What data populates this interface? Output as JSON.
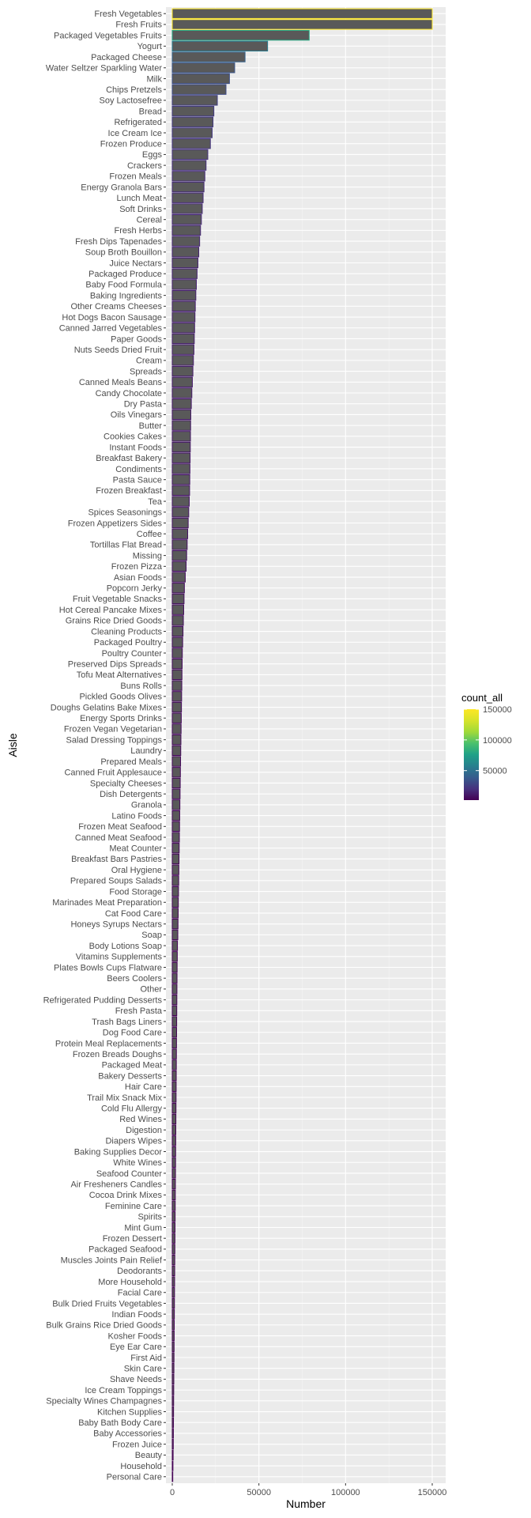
{
  "chart_data": {
    "type": "bar",
    "orientation": "horizontal",
    "xlabel": "Number",
    "ylabel": "Aisle",
    "xlim": [
      0,
      150000
    ],
    "x_ticks": [
      0,
      50000,
      100000,
      150000
    ],
    "x_tick_labels": [
      "0",
      "50000",
      "100000",
      "150000"
    ],
    "grid": true,
    "legend": {
      "title": "count_all",
      "placement": "right",
      "ticks": [
        50000,
        100000,
        150000
      ],
      "tick_labels": [
        "50000",
        "100000",
        "150000"
      ],
      "range": [
        2000,
        150000
      ]
    },
    "categories": [
      "Personal Care",
      "Household",
      "Beauty",
      "Frozen Juice",
      "Baby Accessories",
      "Baby Bath Body Care",
      "Kitchen Supplies",
      "Specialty Wines Champagnes",
      "Ice Cream Toppings",
      "Shave Needs",
      "Skin Care",
      "First Aid",
      "Eye Ear Care",
      "Kosher Foods",
      "Bulk Grains Rice Dried Goods",
      "Indian Foods",
      "Bulk Dried Fruits Vegetables",
      "Facial Care",
      "More Household",
      "Deodorants",
      "Muscles Joints Pain Relief",
      "Packaged Seafood",
      "Frozen Dessert",
      "Mint Gum",
      "Spirits",
      "Feminine Care",
      "Cocoa Drink Mixes",
      "Air Fresheners Candles",
      "Seafood Counter",
      "White Wines",
      "Baking Supplies Decor",
      "Diapers Wipes",
      "Digestion",
      "Red Wines",
      "Cold Flu Allergy",
      "Trail Mix Snack Mix",
      "Hair Care",
      "Bakery Desserts",
      "Packaged Meat",
      "Frozen Breads Doughs",
      "Protein Meal Replacements",
      "Dog Food Care",
      "Trash Bags Liners",
      "Fresh Pasta",
      "Refrigerated Pudding Desserts",
      "Other",
      "Beers Coolers",
      "Plates Bowls Cups Flatware",
      "Vitamins Supplements",
      "Body Lotions Soap",
      "Soap",
      "Honeys Syrups Nectars",
      "Cat Food Care",
      "Marinades Meat Preparation",
      "Food Storage",
      "Prepared Soups Salads",
      "Oral Hygiene",
      "Breakfast Bars Pastries",
      "Meat Counter",
      "Canned Meat Seafood",
      "Frozen Meat Seafood",
      "Latino Foods",
      "Granola",
      "Dish Detergents",
      "Specialty Cheeses",
      "Canned Fruit Applesauce",
      "Prepared Meals",
      "Laundry",
      "Salad Dressing Toppings",
      "Frozen Vegan Vegetarian",
      "Energy Sports Drinks",
      "Doughs Gelatins Bake Mixes",
      "Pickled Goods Olives",
      "Buns Rolls",
      "Tofu Meat Alternatives",
      "Preserved Dips Spreads",
      "Poultry Counter",
      "Packaged Poultry",
      "Cleaning Products",
      "Grains Rice Dried Goods",
      "Hot Cereal Pancake Mixes",
      "Fruit Vegetable Snacks",
      "Popcorn Jerky",
      "Asian Foods",
      "Frozen Pizza",
      "Missing",
      "Tortillas Flat Bread",
      "Coffee",
      "Frozen Appetizers Sides",
      "Spices Seasonings",
      "Tea",
      "Frozen Breakfast",
      "Pasta Sauce",
      "Condiments",
      "Breakfast Bakery",
      "Instant Foods",
      "Cookies Cakes",
      "Butter",
      "Oils Vinegars",
      "Dry Pasta",
      "Candy Chocolate",
      "Canned Meals Beans",
      "Spreads",
      "Cream",
      "Nuts Seeds Dried Fruit",
      "Paper Goods",
      "Canned Jarred Vegetables",
      "Hot Dogs Bacon Sausage",
      "Other Creams Cheeses",
      "Baking Ingredients",
      "Baby Food Formula",
      "Packaged Produce",
      "Juice Nectars",
      "Soup Broth Bouillon",
      "Fresh Dips Tapenades",
      "Fresh Herbs",
      "Cereal",
      "Soft Drinks",
      "Lunch Meat",
      "Energy Granola Bars",
      "Frozen Meals",
      "Crackers",
      "Eggs",
      "Frozen Produce",
      "Ice Cream Ice",
      "Refrigerated",
      "Bread",
      "Soy Lactosefree",
      "Chips Pretzels",
      "Milk",
      "Water Seltzer Sparkling Water",
      "Packaged Cheese",
      "Yogurt",
      "Packaged Vegetables Fruits",
      "Fresh Fruits",
      "Fresh Vegetables"
    ],
    "values": [
      300,
      400,
      500,
      600,
      650,
      700,
      750,
      800,
      850,
      900,
      950,
      1000,
      1050,
      1100,
      1150,
      1200,
      1250,
      1300,
      1350,
      1400,
      1450,
      1500,
      1550,
      1600,
      1650,
      1700,
      1750,
      1800,
      1850,
      1900,
      1950,
      2000,
      2050,
      2100,
      2150,
      2200,
      2250,
      2300,
      2350,
      2400,
      2450,
      2500,
      2550,
      2600,
      2650,
      2700,
      2750,
      2800,
      2900,
      3000,
      3200,
      3300,
      3400,
      3500,
      3600,
      3700,
      3800,
      3900,
      4000,
      4100,
      4200,
      4300,
      4400,
      4500,
      4600,
      4700,
      4800,
      4900,
      5000,
      5100,
      5200,
      5300,
      5400,
      5500,
      5600,
      5700,
      5800,
      6000,
      6200,
      6400,
      6600,
      6800,
      7000,
      7500,
      8000,
      8300,
      8600,
      8900,
      9200,
      9500,
      9800,
      10000,
      10100,
      10200,
      10300,
      10400,
      10500,
      10600,
      10700,
      11000,
      11300,
      11600,
      11900,
      12200,
      12500,
      12700,
      12900,
      13100,
      13300,
      13600,
      13900,
      14300,
      14800,
      15300,
      15800,
      16300,
      16800,
      17300,
      17800,
      18300,
      18800,
      19500,
      20500,
      22000,
      23000,
      23500,
      24000,
      26000,
      31000,
      33000,
      36000,
      42000,
      55000,
      79000,
      150000,
      150000
    ]
  }
}
